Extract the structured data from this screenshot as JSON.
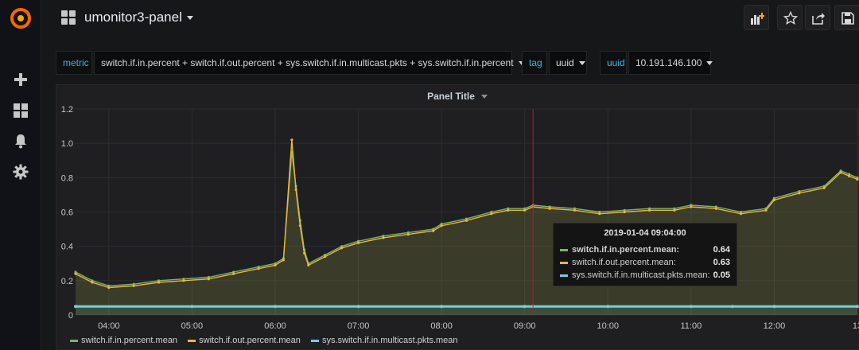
{
  "app": {
    "dashboard_title": "umonitor3-panel"
  },
  "toolbar": {
    "icons": [
      "add-panel-icon",
      "star-icon",
      "share-icon",
      "save-icon"
    ]
  },
  "sidebar": {
    "icons": [
      "grafana-logo",
      "plus-icon",
      "dashboards-icon",
      "alert-bell-icon",
      "gear-icon"
    ]
  },
  "variables": {
    "metric_label": "metric",
    "metric_value": "switch.if.in.percent + switch.if.out.percent + sys.switch.if.in.multicast.pkts + sys.switch.if.in.percent",
    "tag_label": "tag",
    "tag_value": "uuid",
    "uuid_label": "uuid",
    "uuid_value": "10.191.146.100"
  },
  "panel": {
    "title": "Panel Title"
  },
  "tooltip": {
    "time": "2019-01-04 09:04:00",
    "rows": [
      {
        "name": "switch.if.in.percent.mean:",
        "value": "0.64"
      },
      {
        "name": "switch.if.out.percent.mean:",
        "value": "0.63"
      },
      {
        "name": "sys.switch.if.in.multicast.pkts.mean:",
        "value": "0.05"
      }
    ]
  },
  "legend": [
    {
      "name": "switch.if.in.percent.mean",
      "color": "#7eb26d"
    },
    {
      "name": "switch.if.out.percent.mean",
      "color": "#eab839"
    },
    {
      "name": "sys.switch.if.in.multicast.pkts.mean",
      "color": "#6ed0e0"
    }
  ],
  "chart_data": {
    "type": "line",
    "x_ticks": [
      "04:00",
      "05:00",
      "06:00",
      "07:00",
      "08:00",
      "09:00",
      "10:00",
      "11:00",
      "12:00",
      "13"
    ],
    "y_ticks": [
      "0",
      "0.2",
      "0.4",
      "0.6",
      "0.8",
      "1.0",
      "1.2"
    ],
    "ylim": [
      0,
      1.2
    ],
    "x_hours_range": [
      3.6,
      13.0
    ],
    "cursor_hour": 9.1,
    "grid": true,
    "legend_placement": "bottom-left",
    "series": [
      {
        "name": "switch.if.in.percent.mean",
        "color": "#7eb26d",
        "x": [
          3.6,
          3.8,
          4.0,
          4.3,
          4.6,
          4.9,
          5.2,
          5.5,
          5.8,
          6.0,
          6.1,
          6.2,
          6.25,
          6.3,
          6.35,
          6.4,
          6.6,
          6.8,
          7.0,
          7.3,
          7.6,
          7.9,
          8.0,
          8.3,
          8.6,
          8.8,
          9.0,
          9.1,
          9.3,
          9.6,
          9.9,
          10.2,
          10.5,
          10.8,
          11.0,
          11.3,
          11.6,
          11.9,
          12.0,
          12.3,
          12.6,
          12.8,
          12.9,
          13.0
        ],
        "values": [
          0.25,
          0.2,
          0.17,
          0.18,
          0.2,
          0.21,
          0.22,
          0.25,
          0.28,
          0.3,
          0.33,
          0.95,
          0.75,
          0.55,
          0.38,
          0.3,
          0.35,
          0.4,
          0.43,
          0.46,
          0.48,
          0.5,
          0.53,
          0.56,
          0.6,
          0.62,
          0.62,
          0.64,
          0.63,
          0.62,
          0.6,
          0.61,
          0.62,
          0.62,
          0.64,
          0.63,
          0.6,
          0.62,
          0.68,
          0.72,
          0.75,
          0.84,
          0.82,
          0.8
        ]
      },
      {
        "name": "switch.if.out.percent.mean",
        "color": "#eab839",
        "x": [
          3.6,
          3.8,
          4.0,
          4.3,
          4.6,
          4.9,
          5.2,
          5.5,
          5.8,
          6.0,
          6.1,
          6.2,
          6.25,
          6.3,
          6.35,
          6.4,
          6.6,
          6.8,
          7.0,
          7.3,
          7.6,
          7.9,
          8.0,
          8.3,
          8.6,
          8.8,
          9.0,
          9.1,
          9.3,
          9.6,
          9.9,
          10.2,
          10.5,
          10.8,
          11.0,
          11.3,
          11.6,
          11.9,
          12.0,
          12.3,
          12.6,
          12.8,
          12.9,
          13.0
        ],
        "values": [
          0.24,
          0.19,
          0.16,
          0.17,
          0.19,
          0.2,
          0.21,
          0.24,
          0.27,
          0.29,
          0.32,
          1.02,
          0.73,
          0.52,
          0.36,
          0.29,
          0.34,
          0.39,
          0.42,
          0.45,
          0.47,
          0.49,
          0.52,
          0.55,
          0.59,
          0.61,
          0.61,
          0.63,
          0.62,
          0.61,
          0.59,
          0.6,
          0.61,
          0.61,
          0.63,
          0.62,
          0.59,
          0.61,
          0.67,
          0.71,
          0.74,
          0.83,
          0.81,
          0.79
        ]
      },
      {
        "name": "sys.switch.if.in.multicast.pkts.mean",
        "color": "#6ed0e0",
        "x": [
          3.6,
          5.0,
          6.0,
          7.0,
          8.0,
          9.0,
          9.1,
          10.0,
          11.0,
          11.5,
          12.0,
          13.0
        ],
        "values": [
          0.05,
          0.05,
          0.05,
          0.05,
          0.05,
          0.05,
          0.05,
          0.05,
          0.05,
          0.05,
          0.05,
          0.05
        ]
      }
    ]
  }
}
